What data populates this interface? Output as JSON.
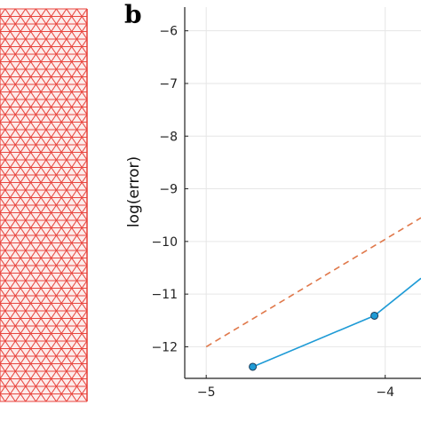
{
  "panel_b": {
    "label": "b"
  },
  "colors": {
    "mesh": "#e8463f",
    "series": "#1f9bd6",
    "series_marker_edge": "#1a3c5a",
    "reference": "#e0784a",
    "grid": "#e6e6e6",
    "axis": "#222222"
  },
  "chart_data": {
    "type": "line",
    "title": "",
    "xlabel": "",
    "ylabel": "log(error)",
    "xlim": [
      -5.12,
      -3.8
    ],
    "ylim": [
      -12.6,
      -5.55
    ],
    "grid": true,
    "xticks": [
      -5,
      -4
    ],
    "xtick_labels": [
      "−5",
      "−4"
    ],
    "yticks": [
      -12,
      -11,
      -10,
      -9,
      -8,
      -7,
      -6
    ],
    "ytick_labels": [
      "−12",
      "−11",
      "−10",
      "−9",
      "−8",
      "−7",
      "−6"
    ],
    "series": [
      {
        "style": "solid-with-markers",
        "x": [
          -4.74,
          -4.06,
          -3.8
        ],
        "y": [
          -12.38,
          -11.41,
          -10.7
        ]
      },
      {
        "style": "dashed",
        "x": [
          -5.0,
          -3.8
        ],
        "y": [
          -12.0,
          -9.55
        ]
      }
    ]
  }
}
